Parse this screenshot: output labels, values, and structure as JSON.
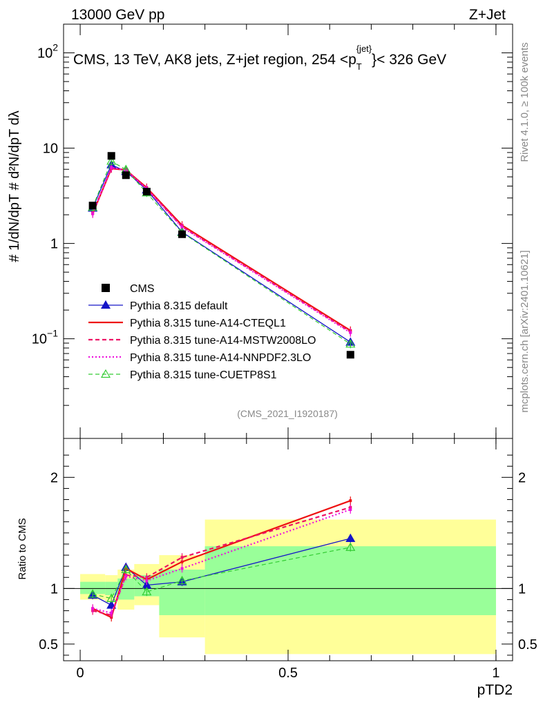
{
  "header": {
    "left": "13000 GeV pp",
    "right": "Z+Jet"
  },
  "side": {
    "rivet": "Rivet 4.1.0, ≥ 100k events",
    "source": "mcplots.cern.ch [arXiv:2401.10621]"
  },
  "labels": {
    "plot_title": "CMS, 13 TeV, AK8 jets, Z+jet region, 254 <p",
    "plot_title_sup": "{jet}",
    "plot_title_sub": "T",
    "plot_title_end": "}< 326 GeV",
    "watermark": "(CMS_2021_I1920187)",
    "ylabel_main": "# 1/dN/dpT # d²N/dpT dλ",
    "ylabel_ratio": "Ratio to CMS",
    "xlabel": "pTD2"
  },
  "chart_data": [
    {
      "type": "line",
      "panel": "main",
      "yscale": "log",
      "ylim": [
        0.009,
        200
      ],
      "xlim": [
        -0.04,
        1.04
      ],
      "y_ticks": [
        {
          "v": 0.1,
          "base": "10",
          "exp": "−1"
        },
        {
          "v": 1,
          "base": "1",
          "exp": ""
        },
        {
          "v": 10,
          "base": "10",
          "exp": ""
        },
        {
          "v": 100,
          "base": "10",
          "exp": "2"
        }
      ],
      "x": [
        0.03,
        0.075,
        0.11,
        0.16,
        0.245,
        0.65
      ],
      "series": [
        {
          "name": "CMS",
          "values": [
            2.5,
            8.3,
            5.2,
            3.5,
            1.25,
            0.068
          ],
          "color": "#000000"
        },
        {
          "name": "Pythia 8.315 default",
          "values": [
            2.35,
            6.7,
            5.7,
            3.65,
            1.32,
            0.092
          ],
          "color": "#1515c8"
        },
        {
          "name": "Pythia 8.315 tune-A14-CTEQL1",
          "values": [
            2.05,
            6.1,
            5.9,
            3.85,
            1.55,
            0.122
          ],
          "color": "#ee1111"
        },
        {
          "name": "Pythia 8.315 tune-A14-MSTW2008LO",
          "values": [
            2.1,
            6.1,
            5.95,
            3.75,
            1.5,
            0.118
          ],
          "color": "#ee1166"
        },
        {
          "name": "Pythia 8.315 tune-A14-NNPDF2.3LO",
          "values": [
            2.05,
            6.3,
            5.8,
            3.75,
            1.48,
            0.116
          ],
          "color": "#ee11dd"
        },
        {
          "name": "Pythia 8.315 tune-CUETP8S1",
          "values": [
            2.4,
            7.3,
            5.95,
            3.4,
            1.3,
            0.088
          ],
          "color": "#33cc33"
        }
      ]
    },
    {
      "type": "line",
      "panel": "ratio",
      "ylim": [
        0.35,
        2.35
      ],
      "xlim": [
        -0.04,
        1.04
      ],
      "y_ticks": [
        0.5,
        1,
        2
      ],
      "x_ticks": [
        0,
        0.5,
        1
      ],
      "x_tick_labels": [
        "0",
        "0.5",
        "1"
      ],
      "x": [
        0.03,
        0.075,
        0.11,
        0.16,
        0.245,
        0.65
      ],
      "series": [
        {
          "name": "Pythia 8.315 default",
          "values": [
            0.94,
            0.85,
            1.19,
            1.03,
            1.06,
            1.45
          ],
          "color": "#1515c8"
        },
        {
          "name": "Pythia 8.315 tune-A14-CTEQL1",
          "values": [
            0.82,
            0.74,
            1.18,
            1.08,
            1.24,
            1.79
          ],
          "color": "#ee1111"
        },
        {
          "name": "Pythia 8.315 tune-A14-MSTW2008LO",
          "values": [
            0.8,
            0.76,
            1.12,
            1.1,
            1.28,
            1.73
          ],
          "color": "#ee1166"
        },
        {
          "name": "Pythia 8.315 tune-A14-NNPDF2.3LO",
          "values": [
            0.82,
            0.78,
            1.11,
            1.07,
            1.18,
            1.71
          ],
          "color": "#ee11dd"
        },
        {
          "name": "Pythia 8.315 tune-CUETP8S1",
          "values": [
            0.95,
            0.91,
            1.17,
            0.97,
            1.07,
            1.37
          ],
          "color": "#33cc33"
        }
      ],
      "bands": [
        {
          "x0": 0.0,
          "x1": 0.06,
          "yellow": [
            0.9,
            1.13
          ],
          "green": [
            0.95,
            1.06
          ]
        },
        {
          "x0": 0.06,
          "x1": 0.09,
          "yellow": [
            0.88,
            1.12
          ],
          "green": [
            0.94,
            1.06
          ]
        },
        {
          "x0": 0.09,
          "x1": 0.13,
          "yellow": [
            0.81,
            1.17
          ],
          "green": [
            0.9,
            1.09
          ]
        },
        {
          "x0": 0.13,
          "x1": 0.19,
          "yellow": [
            0.85,
            1.22
          ],
          "green": [
            0.93,
            1.12
          ]
        },
        {
          "x0": 0.19,
          "x1": 0.3,
          "yellow": [
            0.56,
            1.3
          ],
          "green": [
            0.76,
            1.17
          ]
        },
        {
          "x0": 0.3,
          "x1": 1.0,
          "yellow": [
            0.41,
            1.62
          ],
          "green": [
            0.76,
            1.38
          ]
        }
      ]
    }
  ]
}
